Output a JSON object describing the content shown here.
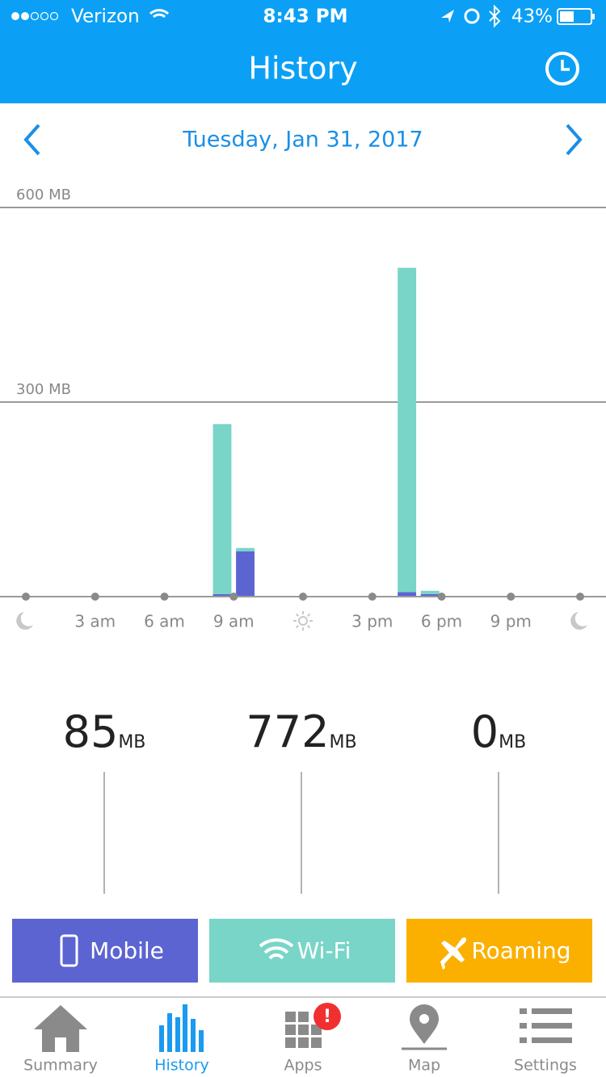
{
  "status_bar": {
    "carrier": "Verizon",
    "time": "8:43 PM",
    "battery": "43%"
  },
  "header": {
    "title": "History",
    "date": "Tuesday, Jan 31, 2017"
  },
  "chart_data": {
    "type": "bar",
    "stacked": true,
    "x": [
      8,
      9,
      16,
      17
    ],
    "xlim": [
      0,
      24
    ],
    "xticks": [
      {
        "value": 0,
        "icon": "moon"
      },
      {
        "value": 3,
        "label": "3 am"
      },
      {
        "value": 6,
        "label": "6 am"
      },
      {
        "value": 9,
        "label": "9 am"
      },
      {
        "value": 12,
        "icon": "sun"
      },
      {
        "value": 15,
        "label": "3 pm"
      },
      {
        "value": 18,
        "label": "6 pm"
      },
      {
        "value": 21,
        "label": "9 pm"
      },
      {
        "value": 24,
        "icon": "moon"
      }
    ],
    "ylim": [
      0,
      600
    ],
    "yticks": [
      {
        "value": 300,
        "label": "300 MB"
      },
      {
        "value": 600,
        "label": "600 MB"
      }
    ],
    "grid": true,
    "total_unit": "MB",
    "series": [
      {
        "name": "Mobile",
        "color": "#5c64d2",
        "values": [
          4,
          70,
          7,
          4
        ],
        "total": 85
      },
      {
        "name": "Wi-Fi",
        "color": "#78d5c8",
        "values": [
          262,
          5,
          500,
          5
        ],
        "total": 772
      },
      {
        "name": "Roaming",
        "color": "#fbb000",
        "values": [
          0,
          0,
          0,
          0
        ],
        "total": 0
      }
    ]
  },
  "tab_bar": {
    "items": [
      "Summary",
      "History",
      "Apps",
      "Map",
      "Settings"
    ],
    "active": 1,
    "badge": "!"
  }
}
